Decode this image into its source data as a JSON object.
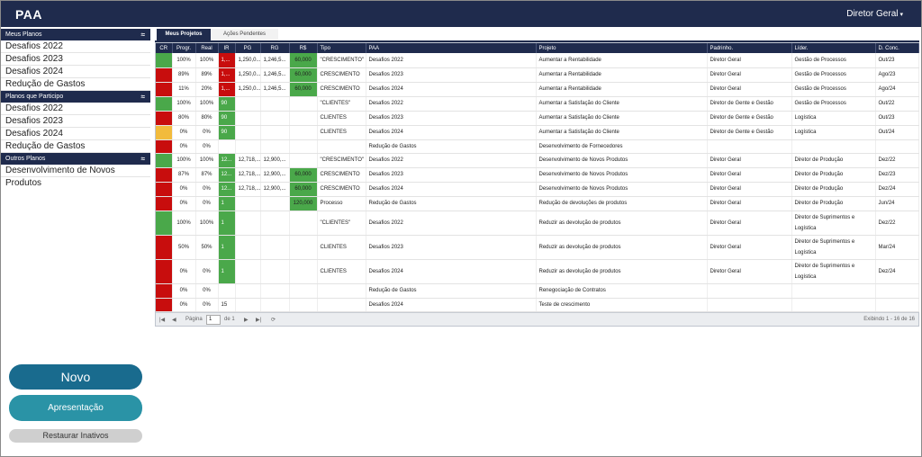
{
  "app": {
    "title": "PAA",
    "user_menu": "Diretor Geral",
    "user_caret": "▾"
  },
  "sidebar": {
    "sections": [
      {
        "title": "Meus Planos",
        "items": [
          "Desafios 2022",
          "Desafios 2023",
          "Desafios 2024",
          "Redução de Gastos"
        ]
      },
      {
        "title": "Planos que Participo",
        "items": [
          "Desafios 2022",
          "Desafios 2023",
          "Desafios 2024",
          "Redução de Gastos"
        ]
      },
      {
        "title": "Outros Planos",
        "items": [
          "Desenvolvimento de Novos Produtos"
        ]
      }
    ],
    "collapse_glyph": "≈"
  },
  "buttons": {
    "novo": "Novo",
    "apresentacao": "Apresentação",
    "restaurar": "Restaurar Inativos"
  },
  "tabs": {
    "active": "Meus Projetos",
    "inactive": "Ações Pendentes"
  },
  "table": {
    "headers": [
      "CR",
      "Progr.",
      "Real",
      "IR",
      "PG",
      "RG",
      "R$",
      "Tipo",
      "PAA",
      "Projeto",
      "Padrinho.",
      "Líder.",
      "D. Conc."
    ],
    "rows": [
      {
        "cr": "green",
        "progr": "100%",
        "real": "100%",
        "ir": "1,...",
        "ir_color": "red",
        "pg": "1,250,0...",
        "rg": "1,246,5...",
        "rs": "60,000",
        "tipo": "\"CRESCIMENTO\"",
        "paa": "Desafios 2022",
        "projeto": "Aumentar a Rentabilidade",
        "padrinho": "Diretor Geral",
        "lider": "Gestão de Processos",
        "conc": "Out/23",
        "h": 16
      },
      {
        "cr": "red",
        "progr": "89%",
        "real": "89%",
        "ir": "1,...",
        "ir_color": "red",
        "pg": "1,250,0...",
        "rg": "1,246,5...",
        "rs": "60,000",
        "tipo": "CRESCIMENTO",
        "paa": "Desafios 2023",
        "projeto": "Aumentar a Rentabilidade",
        "padrinho": "Diretor Geral",
        "lider": "Gestão de Processos",
        "conc": "Ago/23",
        "h": 16
      },
      {
        "cr": "red",
        "progr": "11%",
        "real": "20%",
        "ir": "1,...",
        "ir_color": "red",
        "pg": "1,250,0...",
        "rg": "1,246,5...",
        "rs": "60,000",
        "tipo": "CRESCIMENTO",
        "paa": "Desafios 2024",
        "projeto": "Aumentar a Rentabilidade",
        "padrinho": "Diretor Geral",
        "lider": "Gestão de Processos",
        "conc": "Ago/24",
        "h": 16
      },
      {
        "cr": "green",
        "progr": "100%",
        "real": "100%",
        "ir": "90",
        "ir_color": "green",
        "pg": "",
        "rg": "",
        "rs": "",
        "tipo": "\"CLIENTES\"",
        "paa": "Desafios 2022",
        "projeto": "Aumentar a Satisfação do Cliente",
        "padrinho": "Diretor de Gente e Gestão",
        "lider": "Gestão de Processos",
        "conc": "Out/22",
        "h": 16
      },
      {
        "cr": "red",
        "progr": "80%",
        "real": "80%",
        "ir": "90",
        "ir_color": "green",
        "pg": "",
        "rg": "",
        "rs": "",
        "tipo": "CLIENTES",
        "paa": "Desafios 2023",
        "projeto": "Aumentar a Satisfação do Cliente",
        "padrinho": "Diretor de Gente e Gestão",
        "lider": "Logística",
        "conc": "Out/23",
        "h": 16
      },
      {
        "cr": "yellow",
        "progr": "0%",
        "real": "0%",
        "ir": "90",
        "ir_color": "green",
        "pg": "",
        "rg": "",
        "rs": "",
        "tipo": "CLIENTES",
        "paa": "Desafios 2024",
        "projeto": "Aumentar a Satisfação do Cliente",
        "padrinho": "Diretor de Gente e Gestão",
        "lider": "Logística",
        "conc": "Out/24",
        "h": 16
      },
      {
        "cr": "red",
        "progr": "0%",
        "real": "0%",
        "ir": "",
        "ir_color": "",
        "pg": "",
        "rg": "",
        "rs": "",
        "tipo": "",
        "paa": "Redução de Gastos",
        "projeto": "Desenvolvimento de Fornecedores",
        "padrinho": "",
        "lider": "",
        "conc": "",
        "h": 15
      },
      {
        "cr": "green",
        "progr": "100%",
        "real": "100%",
        "ir": "12...",
        "ir_color": "green",
        "pg": "12,718,...",
        "rg": "12,900,...",
        "rs": "",
        "tipo": "\"CRESCIMENTO\"",
        "paa": "Desafios 2022",
        "projeto": "Desenvolvimento de Novos Produtos",
        "padrinho": "Diretor Geral",
        "lider": "Diretor de Produção",
        "conc": "Dez/22",
        "h": 16
      },
      {
        "cr": "red",
        "progr": "87%",
        "real": "87%",
        "ir": "12...",
        "ir_color": "green",
        "pg": "12,718,...",
        "rg": "12,900,...",
        "rs": "60,000",
        "tipo": "CRESCIMENTO",
        "paa": "Desafios 2023",
        "projeto": "Desenvolvimento de Novos Produtos",
        "padrinho": "Diretor Geral",
        "lider": "Diretor de Produção",
        "conc": "Dez/23",
        "h": 16
      },
      {
        "cr": "red",
        "progr": "0%",
        "real": "0%",
        "ir": "12...",
        "ir_color": "green",
        "pg": "12,718,...",
        "rg": "12,900,...",
        "rs": "60,000",
        "tipo": "CRESCIMENTO",
        "paa": "Desafios 2024",
        "projeto": "Desenvolvimento de Novos Produtos",
        "padrinho": "Diretor Geral",
        "lider": "Diretor de Produção",
        "conc": "Dez/24",
        "h": 16
      },
      {
        "cr": "red",
        "progr": "0%",
        "real": "0%",
        "ir": "1",
        "ir_color": "green",
        "pg": "",
        "rg": "",
        "rs": "120,000",
        "tipo": "Processo",
        "paa": "Redução de Gastos",
        "projeto": "Redução de devoluções de produtos",
        "padrinho": "Diretor Geral",
        "lider": "Diretor de Produção",
        "conc": "Jun/24",
        "h": 16
      },
      {
        "cr": "green",
        "progr": "100%",
        "real": "100%",
        "ir": "1",
        "ir_color": "green",
        "pg": "",
        "rg": "",
        "rs": "",
        "tipo": "\"CLIENTES\"",
        "paa": "Desafios 2022",
        "projeto": "Reduzir as devolução de produtos",
        "padrinho": "Diretor Geral",
        "lider": "Diretor de Suprimentos e Logística",
        "conc": "Dez/22",
        "h": 27
      },
      {
        "cr": "red",
        "progr": "50%",
        "real": "50%",
        "ir": "1",
        "ir_color": "green",
        "pg": "",
        "rg": "",
        "rs": "",
        "tipo": "CLIENTES",
        "paa": "Desafios 2023",
        "projeto": "Reduzir as devolução de produtos",
        "padrinho": "Diretor Geral",
        "lider": "Diretor de Suprimentos e Logística",
        "conc": "Mar/24",
        "h": 27
      },
      {
        "cr": "red",
        "progr": "0%",
        "real": "0%",
        "ir": "1",
        "ir_color": "green",
        "pg": "",
        "rg": "",
        "rs": "",
        "tipo": "CLIENTES",
        "paa": "Desafios 2024",
        "projeto": "Reduzir as devolução de produtos",
        "padrinho": "Diretor Geral",
        "lider": "Diretor de Suprimentos e Logística",
        "conc": "Dez/24",
        "h": 27
      },
      {
        "cr": "red",
        "progr": "0%",
        "real": "0%",
        "ir": "",
        "ir_color": "",
        "pg": "",
        "rg": "",
        "rs": "",
        "tipo": "",
        "paa": "Redução de Gastos",
        "projeto": "Renegociação de Contratos",
        "padrinho": "",
        "lider": "",
        "conc": "",
        "h": 16
      },
      {
        "cr": "red",
        "progr": "0%",
        "real": "0%",
        "ir": "15",
        "ir_color": "",
        "pg": "",
        "rg": "",
        "rs": "",
        "tipo": "",
        "paa": "Desafios 2024",
        "projeto": "Teste de crescimento",
        "padrinho": "",
        "lider": "",
        "conc": "",
        "h": 15
      }
    ]
  },
  "pager": {
    "first": "|◀",
    "prev": "◀",
    "page_label": "Página",
    "page_value": "1",
    "of_label": "de 1",
    "next": "▶",
    "last": "▶|",
    "refresh": "⟳",
    "summary": "Exibindo 1 - 16 de 16"
  },
  "colors": {
    "navy": "#1f2b4d",
    "red": "#c80d0d",
    "green": "#4aa84a",
    "yellow": "#f2bb3c"
  }
}
